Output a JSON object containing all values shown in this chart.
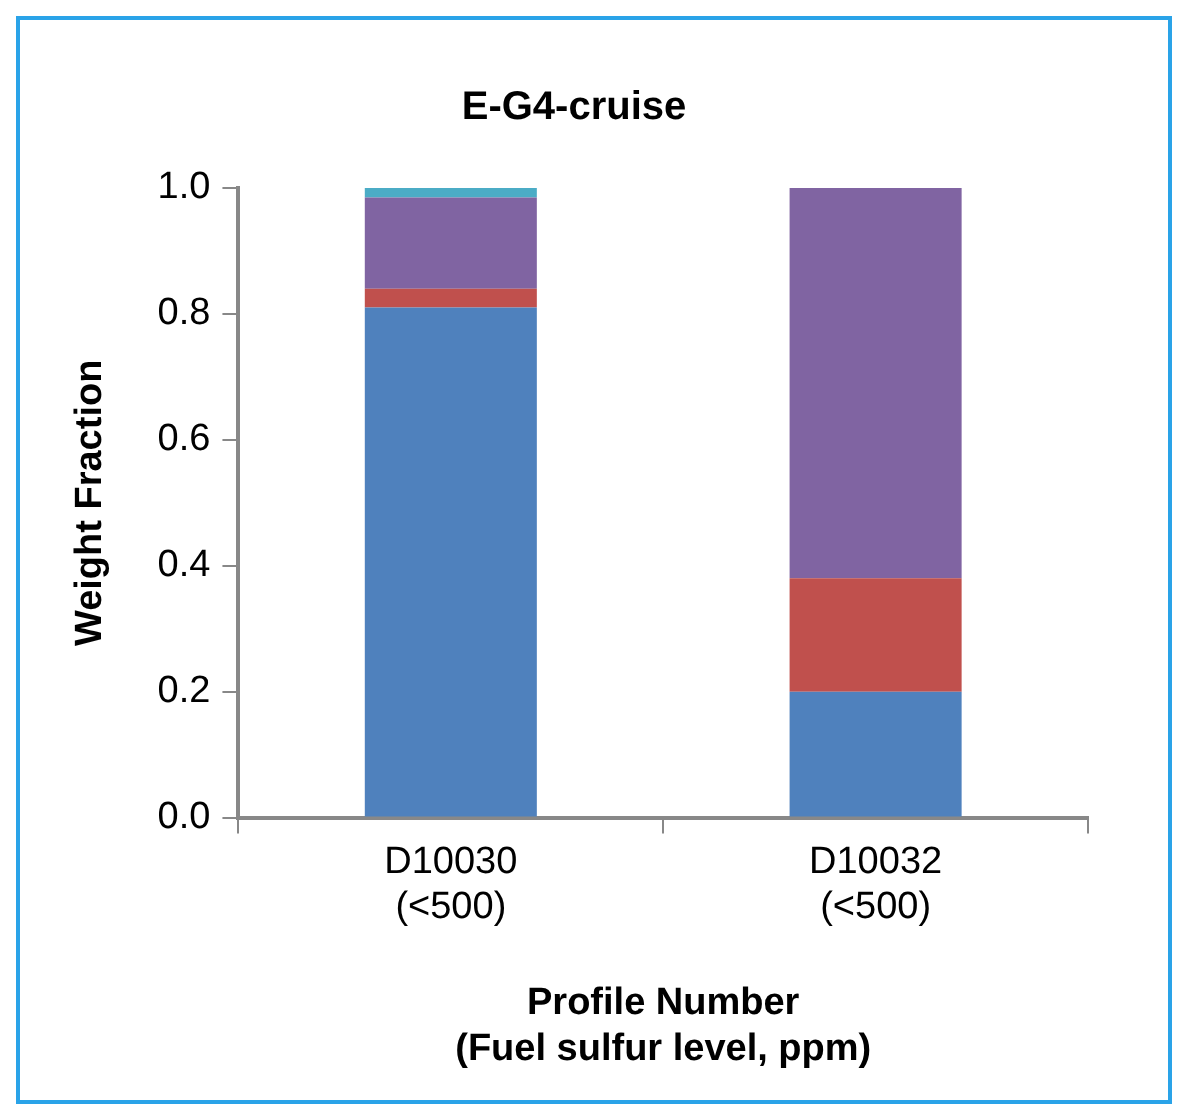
{
  "chart_data": {
    "type": "bar",
    "title": "E-G4-cruise",
    "xlabel": "Profile Number\n(Fuel sulfur level, ppm)",
    "ylabel": "Weight Fraction",
    "categories": [
      "D10030\n(<500)",
      "D10032\n(<500)"
    ],
    "stacked": true,
    "ylim": [
      0,
      1
    ],
    "yticks": [
      {
        "value": 0,
        "label": "0.0"
      },
      {
        "value": 0.2,
        "label": "0.2"
      },
      {
        "value": 0.4,
        "label": "0.4"
      },
      {
        "value": 0.6,
        "label": "0.6"
      },
      {
        "value": 0.8,
        "label": "0.8"
      },
      {
        "value": 1,
        "label": "1.0"
      }
    ],
    "grid": false,
    "legend": false,
    "series": [
      {
        "color": "#4f81bd",
        "values": [
          0.81,
          0.2
        ]
      },
      {
        "color": "#c0504d",
        "values": [
          0.03,
          0.18
        ]
      },
      {
        "color": "#8064a2",
        "values": [
          0.145,
          0.62
        ]
      },
      {
        "color": "#4bacc6",
        "values": [
          0.015,
          0
        ]
      }
    ]
  }
}
